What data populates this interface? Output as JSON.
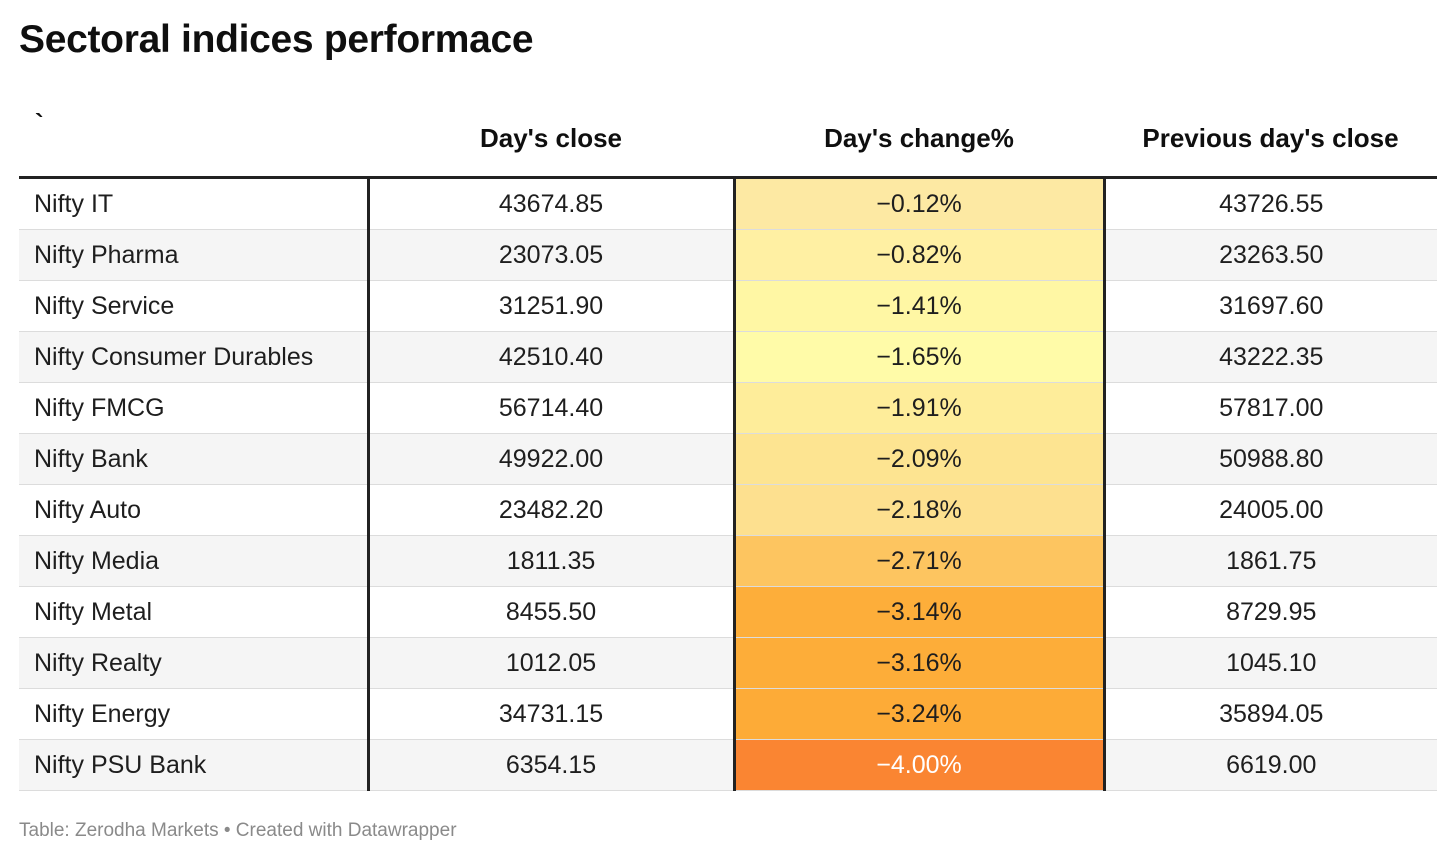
{
  "title": "Sectoral indices performace",
  "footer": "Table: Zerodha Markets • Created with Datawrapper",
  "colors": {
    "heat_low": "#fff7a8",
    "heat_mid": "#fdb037",
    "heat_high": "#fa7f2c"
  },
  "chart_data": {
    "type": "table",
    "title": "Sectoral indices performace",
    "columns": [
      "`",
      "Day's close",
      "Day's change%",
      "Previous day's close"
    ],
    "rows": [
      {
        "name": "Nifty IT",
        "close": "43674.85",
        "change": "−0.12%",
        "prev": "43726.55",
        "change_value": -0.12
      },
      {
        "name": "Nifty Pharma",
        "close": "23073.05",
        "change": "−0.82%",
        "prev": "23263.50",
        "change_value": -0.82
      },
      {
        "name": "Nifty Service",
        "close": "31251.90",
        "change": "−1.41%",
        "prev": "31697.60",
        "change_value": -1.41
      },
      {
        "name": "Nifty Consumer Durables",
        "close": "42510.40",
        "change": "−1.65%",
        "prev": "43222.35",
        "change_value": -1.65
      },
      {
        "name": "Nifty FMCG",
        "close": "56714.40",
        "change": "−1.91%",
        "prev": "57817.00",
        "change_value": -1.91
      },
      {
        "name": "Nifty Bank",
        "close": "49922.00",
        "change": "−2.09%",
        "prev": "50988.80",
        "change_value": -2.09
      },
      {
        "name": "Nifty Auto",
        "close": "23482.20",
        "change": "−2.18%",
        "prev": "24005.00",
        "change_value": -2.18
      },
      {
        "name": "Nifty Media",
        "close": "1811.35",
        "change": "−2.71%",
        "prev": "1861.75",
        "change_value": -2.71
      },
      {
        "name": "Nifty Metal",
        "close": "8455.50",
        "change": "−3.14%",
        "prev": "8729.95",
        "change_value": -3.14
      },
      {
        "name": "Nifty Realty",
        "close": "1012.05",
        "change": "−3.16%",
        "prev": "1045.10",
        "change_value": -3.16
      },
      {
        "name": "Nifty Energy",
        "close": "34731.15",
        "change": "−3.24%",
        "prev": "35894.05",
        "change_value": -3.24
      },
      {
        "name": "Nifty PSU Bank",
        "close": "6354.15",
        "change": "−4.00%",
        "prev": "6619.00",
        "change_value": -4.0
      }
    ],
    "heatmap_colors": [
      "#fde9a3",
      "#fff0a3",
      "#fff7a4",
      "#fffba8",
      "#feed9a",
      "#fde491",
      "#fde08f",
      "#fdc560",
      "#fdae3a",
      "#fdad39",
      "#fdab37",
      "#fa8532"
    ]
  }
}
